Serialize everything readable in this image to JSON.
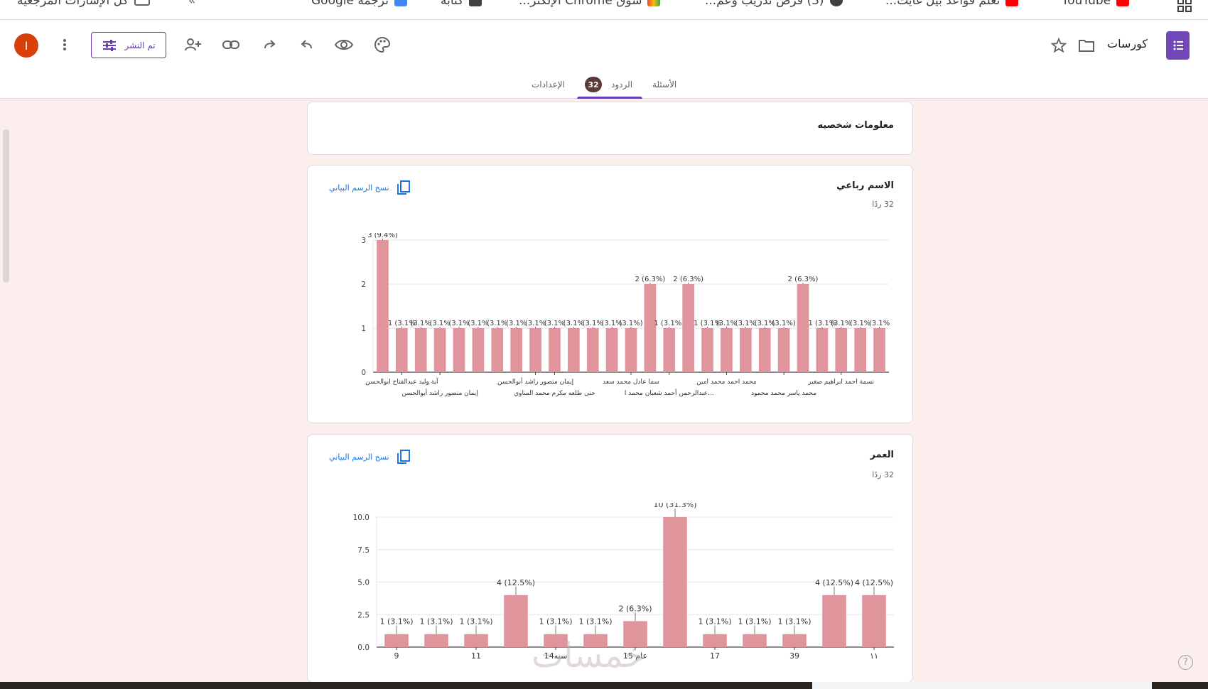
{
  "bookmarks": [
    {
      "label": "كل الإشارات المرجعية",
      "x_hint": "left"
    },
    {
      "label": "ترجمة Google"
    },
    {
      "label": "كتابة"
    },
    {
      "label": "سوق Chrome الإلكتر..."
    },
    {
      "label": "(3) فرص تدريب وعم..."
    },
    {
      "label": "تعلم قواعد بيل غايت..."
    },
    {
      "label": "YouTube"
    }
  ],
  "header": {
    "avatar_letter": "I",
    "publish_label": "تم النشر",
    "form_title": "كورسات"
  },
  "tabs": {
    "questions": "الأسئلة",
    "responses": "الردود",
    "responses_count": "32",
    "settings": "الإعدادات"
  },
  "section": {
    "title": "معلومات شخصيه"
  },
  "copy_chart_label": "نسخ الرسم البياني",
  "card_name": {
    "title": "الاسم رباعي",
    "count": "32 ردًا"
  },
  "card_age": {
    "title": "العمر",
    "count": "32 ردًا"
  },
  "chart_data": [
    {
      "type": "bar",
      "title": "الاسم رباعي",
      "ylim": [
        0,
        3
      ],
      "yticks": [
        0,
        1,
        2,
        3
      ],
      "values": [
        3,
        1,
        1,
        1,
        1,
        1,
        1,
        1,
        1,
        1,
        1,
        1,
        1,
        1,
        2,
        1,
        2,
        1,
        1,
        1,
        1,
        1,
        2,
        1,
        1,
        1,
        1
      ],
      "value_labels": [
        "3 (9.4%)",
        "1 (3.1%",
        "(3.1%",
        "(3.1%",
        "(3.1%",
        "(3.1%",
        "(3.1%",
        "(3.1%",
        "(3.1%",
        "(3.1%",
        "(3.1%",
        "(3.1%",
        "(3.1%",
        "(3.1%)",
        "2 (6.3%)",
        "1 (3.1%)",
        "2 (6.3%)",
        "1 (3.1%",
        "(3.1%",
        "(3.1%",
        "(3.1%",
        "(3.1%)",
        "2 (6.3%)",
        "1 (3.1%",
        "(3.1%",
        "(3.1%",
        "(3.1%"
      ],
      "x_labels_row1": [
        {
          "text": "آية وليد عبدالفتاح ابوالحسن",
          "bar": 1
        },
        {
          "text": "إيمان منصور راشد أبوالحسن",
          "bar": 8
        },
        {
          "text": "سما عادل محمد سعد",
          "bar": 13
        },
        {
          "text": "محمد احمد محمد امين",
          "bar": 18
        },
        {
          "text": "نسمة احمد ابراهيم صغير",
          "bar": 24
        }
      ],
      "x_labels_row2": [
        {
          "text": "إيمان منصور راشد أبوالحسن",
          "bar": 3
        },
        {
          "text": "حنى طلعه مكرم محمد المناوي",
          "bar": 9
        },
        {
          "text": "عبدالرحمن أحمد شعبان محمد ا...",
          "bar": 15
        },
        {
          "text": "محمد ياسر محمد محمود",
          "bar": 21
        }
      ],
      "grid": true
    },
    {
      "type": "bar",
      "title": "العمر",
      "ylim": [
        0,
        10
      ],
      "yticks": [
        "0.0",
        "2.5",
        "5.0",
        "7.5",
        "10.0"
      ],
      "values": [
        1,
        1,
        1,
        4,
        1,
        1,
        2,
        10,
        1,
        1,
        1,
        4,
        4
      ],
      "value_labels": [
        "1 (3.1%)",
        "1 (3.1%)",
        "1 (3.1%)",
        "4 (12.5%)",
        "1 (3.1%)",
        "1 (3.1%)",
        "2 (6.3%)",
        "10 (31.3%)",
        "1 (3.1%)",
        "1 (3.1%)",
        "1 (3.1%)",
        "4 (12.5%)",
        "4 (12.5%)"
      ],
      "x_labels": [
        {
          "text": "9",
          "bar": 0
        },
        {
          "text": "11",
          "bar": 2
        },
        {
          "text": "سنه14",
          "bar": 4
        },
        {
          "text": "15 عام",
          "bar": 6
        },
        {
          "text": "17",
          "bar": 8
        },
        {
          "text": "39",
          "bar": 10
        },
        {
          "text": "١١",
          "bar": 12
        }
      ],
      "grid": true
    }
  ],
  "colors": {
    "bar": "#e0949c",
    "accent": "#673ab7",
    "background": "#fdeeee",
    "link": "#1a73e8"
  },
  "watermark": "خمسات",
  "help_label": "?"
}
